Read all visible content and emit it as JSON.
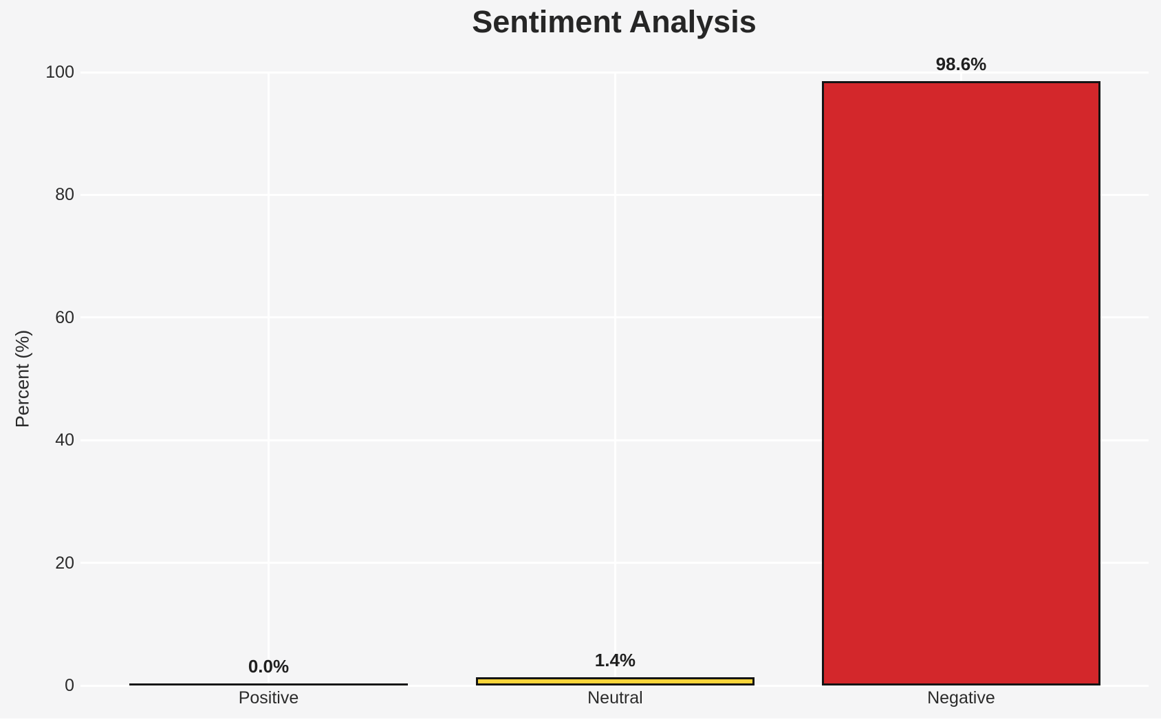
{
  "chart_data": {
    "type": "bar",
    "title": "Sentiment Analysis",
    "categories": [
      "Positive",
      "Neutral",
      "Negative"
    ],
    "values": [
      0.0,
      1.4,
      98.6
    ],
    "bar_labels": [
      "0.0%",
      "1.4%",
      "98.6%"
    ],
    "bar_colors": [
      null,
      "#f9d43a",
      "#d3272b"
    ],
    "edge_color": "#141414",
    "xlabel": "",
    "ylabel": "Percent (%)",
    "ylim": [
      0,
      100
    ],
    "yticks": [
      0,
      20,
      40,
      60,
      80,
      100
    ],
    "ytick_labels": [
      "0",
      "20",
      "40",
      "60",
      "80",
      "100"
    ],
    "grid": true,
    "grid_color": "#ffffff",
    "background_color": "#f5f5f6",
    "legend_position": "none"
  }
}
